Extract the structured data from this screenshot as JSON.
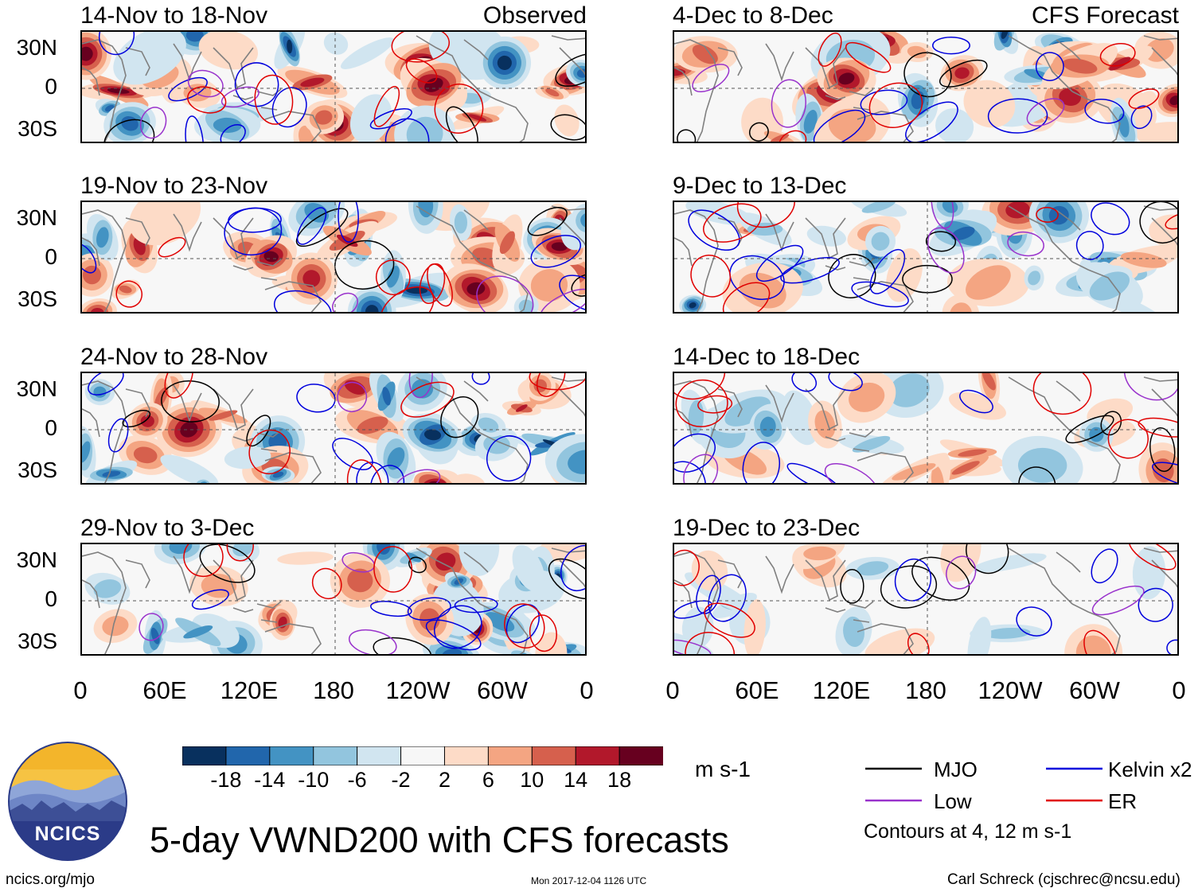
{
  "figure": {
    "title": "5-day VWND200 with CFS forecasts",
    "units": "m s-1",
    "contour_note": "Contours at 4, 12 m s-1",
    "site": "ncics.org/mjo",
    "timestamp": "Mon 2017-12-04 1126 UTC",
    "credit": "Carl Schreck (cjschrec@ncsu.edu)",
    "logo_text": "NCICS"
  },
  "columns": {
    "observed": {
      "label": "Observed"
    },
    "forecast": {
      "label": "CFS Forecast"
    }
  },
  "panels": {
    "observed": [
      {
        "title": "14-Nov to 18-Nov"
      },
      {
        "title": "19-Nov to 23-Nov"
      },
      {
        "title": "24-Nov to 28-Nov"
      },
      {
        "title": "29-Nov to 3-Dec"
      }
    ],
    "forecast": [
      {
        "title": "4-Dec to 8-Dec"
      },
      {
        "title": "9-Dec to 13-Dec"
      },
      {
        "title": "14-Dec to 18-Dec"
      },
      {
        "title": "19-Dec to 23-Dec"
      }
    ]
  },
  "axes": {
    "lat_labels": [
      "30N",
      "0",
      "30S"
    ],
    "lon_labels": [
      "0",
      "60E",
      "120E",
      "180",
      "120W",
      "60W",
      "0"
    ]
  },
  "colorbar": {
    "labels": [
      "-18",
      "-14",
      "-10",
      "-6",
      "-2",
      "2",
      "6",
      "10",
      "14",
      "18"
    ],
    "colors": [
      "#08305e",
      "#2166ac",
      "#4393c3",
      "#92c5de",
      "#d1e5f0",
      "#f7f7f7",
      "#fddbc7",
      "#f4a582",
      "#d6604d",
      "#b2182b",
      "#67001f"
    ]
  },
  "legend": {
    "items": [
      {
        "label": "MJO",
        "color": "#000000"
      },
      {
        "label": "Kelvin x2",
        "color": "#0000dd"
      },
      {
        "label": "Low",
        "color": "#9932cc"
      },
      {
        "label": "ER",
        "color": "#e00000"
      }
    ]
  }
}
